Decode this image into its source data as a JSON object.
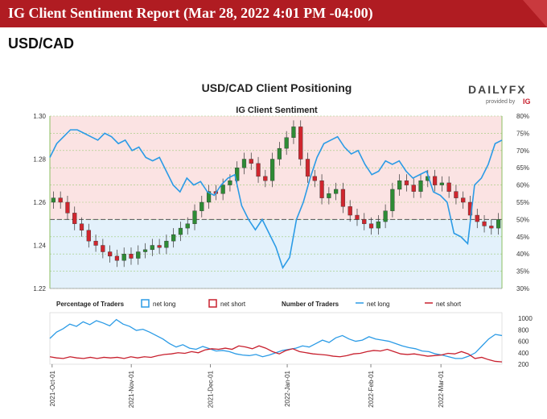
{
  "banner": {
    "title": "IG Client Sentiment Report (Mar 28, 2022 4:01 PM -04:00)"
  },
  "page": {
    "pair": "USD/CAD"
  },
  "logo": {
    "brand": "DAILYFX",
    "provided_by": "provided by",
    "ig": "IG"
  },
  "colors": {
    "banner": "#b01c22",
    "net_long": "#2b9be6",
    "net_short": "#c8202e",
    "bull": "#2e8b35",
    "bear": "#d0262e",
    "upper_zone": "#fbe3e3",
    "lower_zone": "#e3f1fb"
  },
  "chart_data": [
    {
      "type": "candlestick+line",
      "title": "USD/CAD Client Positioning",
      "subtitle": "IG Client Sentiment",
      "left_axis": {
        "ylim": [
          1.22,
          1.3
        ],
        "ticks": [
          "1.22",
          "1.24",
          "1.26",
          "1.28",
          "1.30"
        ]
      },
      "right_axis": {
        "ylim": [
          30,
          80
        ],
        "unit": "%",
        "ticks": [
          "30%",
          "35%",
          "40%",
          "45%",
          "50%",
          "55%",
          "60%",
          "65%",
          "70%",
          "75%",
          "80%"
        ]
      },
      "reference_line": 50,
      "price_close": [
        1.262,
        1.26,
        1.255,
        1.25,
        1.247,
        1.242,
        1.24,
        1.237,
        1.235,
        1.233,
        1.236,
        1.234,
        1.237,
        1.238,
        1.24,
        1.239,
        1.242,
        1.245,
        1.248,
        1.25,
        1.256,
        1.26,
        1.265,
        1.264,
        1.268,
        1.27,
        1.276,
        1.28,
        1.278,
        1.272,
        1.27,
        1.28,
        1.285,
        1.29,
        1.295,
        1.28,
        1.272,
        1.27,
        1.262,
        1.264,
        1.266,
        1.258,
        1.254,
        1.252,
        1.25,
        1.248,
        1.251,
        1.256,
        1.266,
        1.27,
        1.268,
        1.265,
        1.27,
        1.272,
        1.268,
        1.269,
        1.265,
        1.262,
        1.26,
        1.254,
        1.251,
        1.249,
        1.248,
        1.252
      ],
      "net_long_pct": [
        68,
        72,
        74,
        76,
        76,
        75,
        74,
        73,
        75,
        74,
        72,
        73,
        70,
        71,
        68,
        67,
        68,
        64,
        60,
        58,
        62,
        60,
        61,
        58,
        57,
        60,
        62,
        63,
        54,
        50,
        47,
        50,
        46,
        42,
        36,
        39,
        50,
        55,
        62,
        68,
        72,
        73,
        74,
        71,
        69,
        70,
        66,
        63,
        64,
        67,
        66,
        67,
        64,
        62,
        63,
        64,
        58,
        57,
        55,
        46,
        45,
        43,
        60,
        62,
        66,
        72,
        73
      ],
      "x_labels": [
        "2021-Oct-01",
        "2021-Nov-01",
        "2021-Dec-01",
        "2022-Jan-01",
        "2022-Feb-01",
        "2022-Mar-01"
      ],
      "legend": {
        "pct_label": "Percentage of Traders",
        "net_long": "net long",
        "net_short": "net short",
        "num_label": "Number of Traders",
        "num_long": "net long",
        "num_short": "net short"
      },
      "traders_axis": {
        "ylim": [
          200,
          1100
        ],
        "ticks": [
          "200",
          "400",
          "600",
          "800",
          "1000"
        ]
      },
      "traders_long": [
        650,
        760,
        820,
        900,
        860,
        940,
        890,
        960,
        920,
        870,
        980,
        900,
        860,
        790,
        810,
        760,
        700,
        640,
        560,
        500,
        540,
        480,
        460,
        510,
        470,
        430,
        440,
        420,
        380,
        360,
        350,
        370,
        330,
        360,
        400,
        440,
        460,
        480,
        520,
        500,
        560,
        620,
        580,
        660,
        700,
        640,
        600,
        620,
        680,
        640,
        620,
        600,
        560,
        520,
        490,
        470,
        430,
        420,
        380,
        360,
        330,
        300,
        300,
        340,
        400,
        520,
        640,
        720,
        700
      ],
      "traders_short": [
        330,
        310,
        300,
        330,
        310,
        300,
        320,
        300,
        320,
        310,
        320,
        300,
        330,
        310,
        330,
        320,
        350,
        370,
        380,
        400,
        390,
        420,
        400,
        450,
        470,
        460,
        480,
        460,
        520,
        500,
        470,
        520,
        480,
        420,
        380,
        440,
        470,
        420,
        400,
        380,
        370,
        360,
        340,
        330,
        350,
        380,
        390,
        420,
        440,
        430,
        460,
        420,
        380,
        370,
        380,
        360,
        340,
        350,
        360,
        390,
        380,
        420,
        380,
        300,
        320,
        280,
        250,
        240
      ]
    }
  ]
}
